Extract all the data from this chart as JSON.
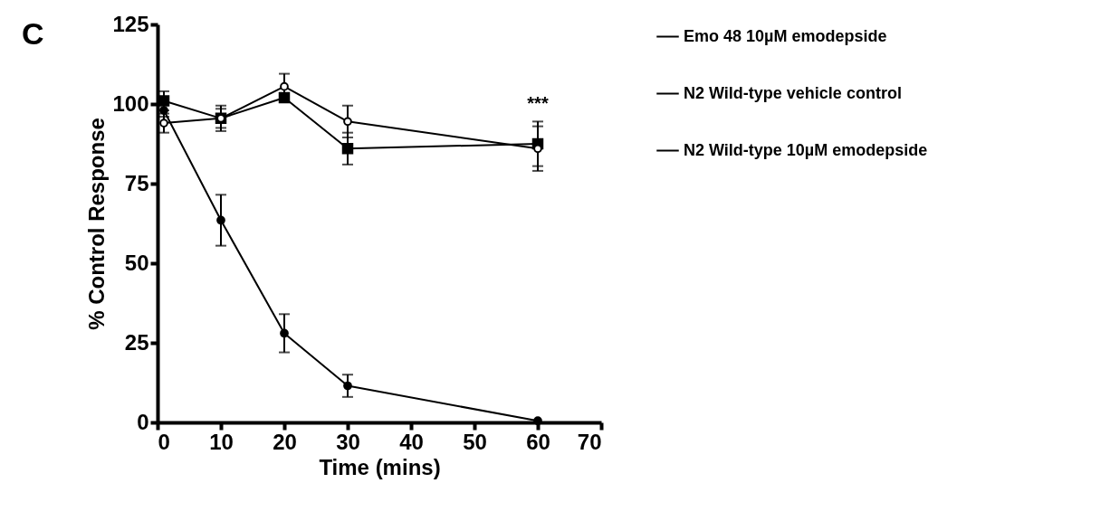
{
  "chart_data": {
    "type": "line",
    "xlabel": "Time (mins)",
    "ylabel": "% Control Response",
    "xlim": [
      0,
      70
    ],
    "xticks": [
      0,
      10,
      20,
      30,
      40,
      50,
      60,
      70
    ],
    "ylim": [
      0,
      125
    ],
    "yticks": [
      0,
      25,
      50,
      75,
      100,
      125
    ],
    "grid": false,
    "legend": "right",
    "annotations": [
      "C",
      {
        "text": "***",
        "x": 60,
        "y": 96
      }
    ],
    "series": [
      {
        "name": "Emo 48 10µM emodepside",
        "color": "#000000",
        "marker": "square",
        "x": [
          1,
          10,
          20,
          30,
          60
        ],
        "values": [
          101,
          95.5,
          102,
          86,
          87.5
        ],
        "errors": [
          3,
          3,
          1,
          5,
          7
        ]
      },
      {
        "name": "N2 Wild-type vehicle control",
        "color": "#000000",
        "marker": "circle",
        "x": [
          1,
          10,
          20,
          30,
          60
        ],
        "values": [
          94,
          95.5,
          105.5,
          94.5,
          86
        ],
        "errors": [
          3,
          4,
          4,
          5,
          7
        ]
      },
      {
        "name": "N2 Wild-type 10µM emodepside",
        "color": "#000000",
        "marker": "circle",
        "x": [
          1,
          10,
          20,
          30,
          60
        ],
        "values": [
          98,
          63.5,
          28,
          11.5,
          0.5
        ],
        "errors": [
          2,
          8,
          6,
          3.5,
          null
        ]
      }
    ]
  }
}
